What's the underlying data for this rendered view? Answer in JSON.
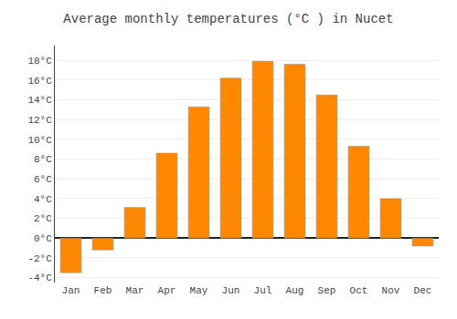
{
  "chart_data": {
    "type": "bar",
    "title": "Average monthly temperatures (°C ) in Nucet",
    "categories": [
      "Jan",
      "Feb",
      "Mar",
      "Apr",
      "May",
      "Jun",
      "Jul",
      "Aug",
      "Sep",
      "Oct",
      "Nov",
      "Dec"
    ],
    "values": [
      -3.5,
      -1.2,
      3.1,
      8.6,
      13.3,
      16.2,
      17.9,
      17.6,
      14.5,
      9.3,
      4.0,
      -0.8
    ],
    "color": "#FF8800",
    "ylim": [
      -4.5,
      19.5
    ],
    "yticks": [
      {
        "value": -4,
        "label": "-4°C"
      },
      {
        "value": -2,
        "label": "-2°C"
      },
      {
        "value": 0,
        "label": "0°C"
      },
      {
        "value": 2,
        "label": "2°C"
      },
      {
        "value": 4,
        "label": "4°C"
      },
      {
        "value": 6,
        "label": "6°C"
      },
      {
        "value": 8,
        "label": "8°C"
      },
      {
        "value": 10,
        "label": "10°C"
      },
      {
        "value": 12,
        "label": "12°C"
      },
      {
        "value": 14,
        "label": "14°C"
      },
      {
        "value": 16,
        "label": "16°C"
      },
      {
        "value": 18,
        "label": "18°C"
      }
    ],
    "grid": true
  }
}
